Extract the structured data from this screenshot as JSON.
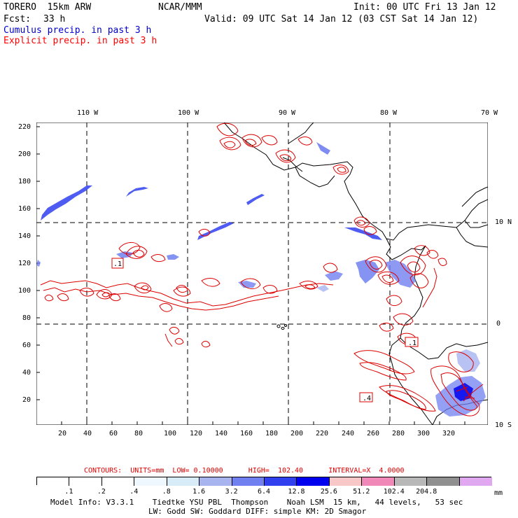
{
  "header": {
    "model": "TORERO  15km ARW",
    "org": "NCAR/MMM",
    "init": "Init: 00 UTC Fri 13 Jan 12",
    "fcst_label": "Fcst:",
    "fcst_value": "33 h",
    "valid": "Valid: 09 UTC Sat 14 Jan 12 (03 CST Sat 14 Jan 12)"
  },
  "legend_lines": {
    "cumulus": "Cumulus precip. in past 3 h",
    "explicit": "Explicit precip. in past 3 h"
  },
  "colors": {
    "cumulus": "#0000cc",
    "explicit": "#ff0000",
    "contour": "#dd0000",
    "coast": "#000000"
  },
  "axes": {
    "top_labels": [
      "110 W",
      "100 W",
      "90 W",
      "80 W",
      "70 W"
    ],
    "right_labels": [
      "10 N",
      "0",
      "10 S"
    ],
    "left_labels": [
      "220",
      "200",
      "180",
      "160",
      "140",
      "120",
      "100",
      "80",
      "60",
      "40",
      "20"
    ],
    "bottom_labels": [
      "20",
      "40",
      "60",
      "80",
      "100",
      "120",
      "140",
      "160",
      "180",
      "200",
      "220",
      "240",
      "260",
      "280",
      "300",
      "320"
    ]
  },
  "contour_boxes": [
    ".1",
    ".1",
    ".4"
  ],
  "contour_info": "CONTOURS:  UNITS=mm  LOW= 0.10000      HIGH=  102.40      INTERVAL=X  4.0000",
  "colorbar": {
    "units": "mm",
    "labels": [
      ".1",
      ".2",
      ".4",
      ".8",
      "1.6",
      "3.2",
      "6.4",
      "12.8",
      "25.6",
      "51.2",
      "102.4",
      "204.8"
    ],
    "colors": [
      "#ffffff",
      "#ffffff",
      "#ffffff",
      "#f0f8ff",
      "#d8ecf8",
      "#a8b4f0",
      "#7080f0",
      "#3040ee",
      "#0000ee",
      "#f8c8c8",
      "#f088b8",
      "#b8b8b8",
      "#909090",
      "#e0a8f0"
    ]
  },
  "footer": {
    "line1": "Model Info: V3.3.1    Tiedtke YSU PBL  Thompson    Noah LSM  15 km,   44 levels,   53 sec",
    "line2": "LW: Godd SW: Goddard DIFF: simple KM: 2D Smagor"
  }
}
